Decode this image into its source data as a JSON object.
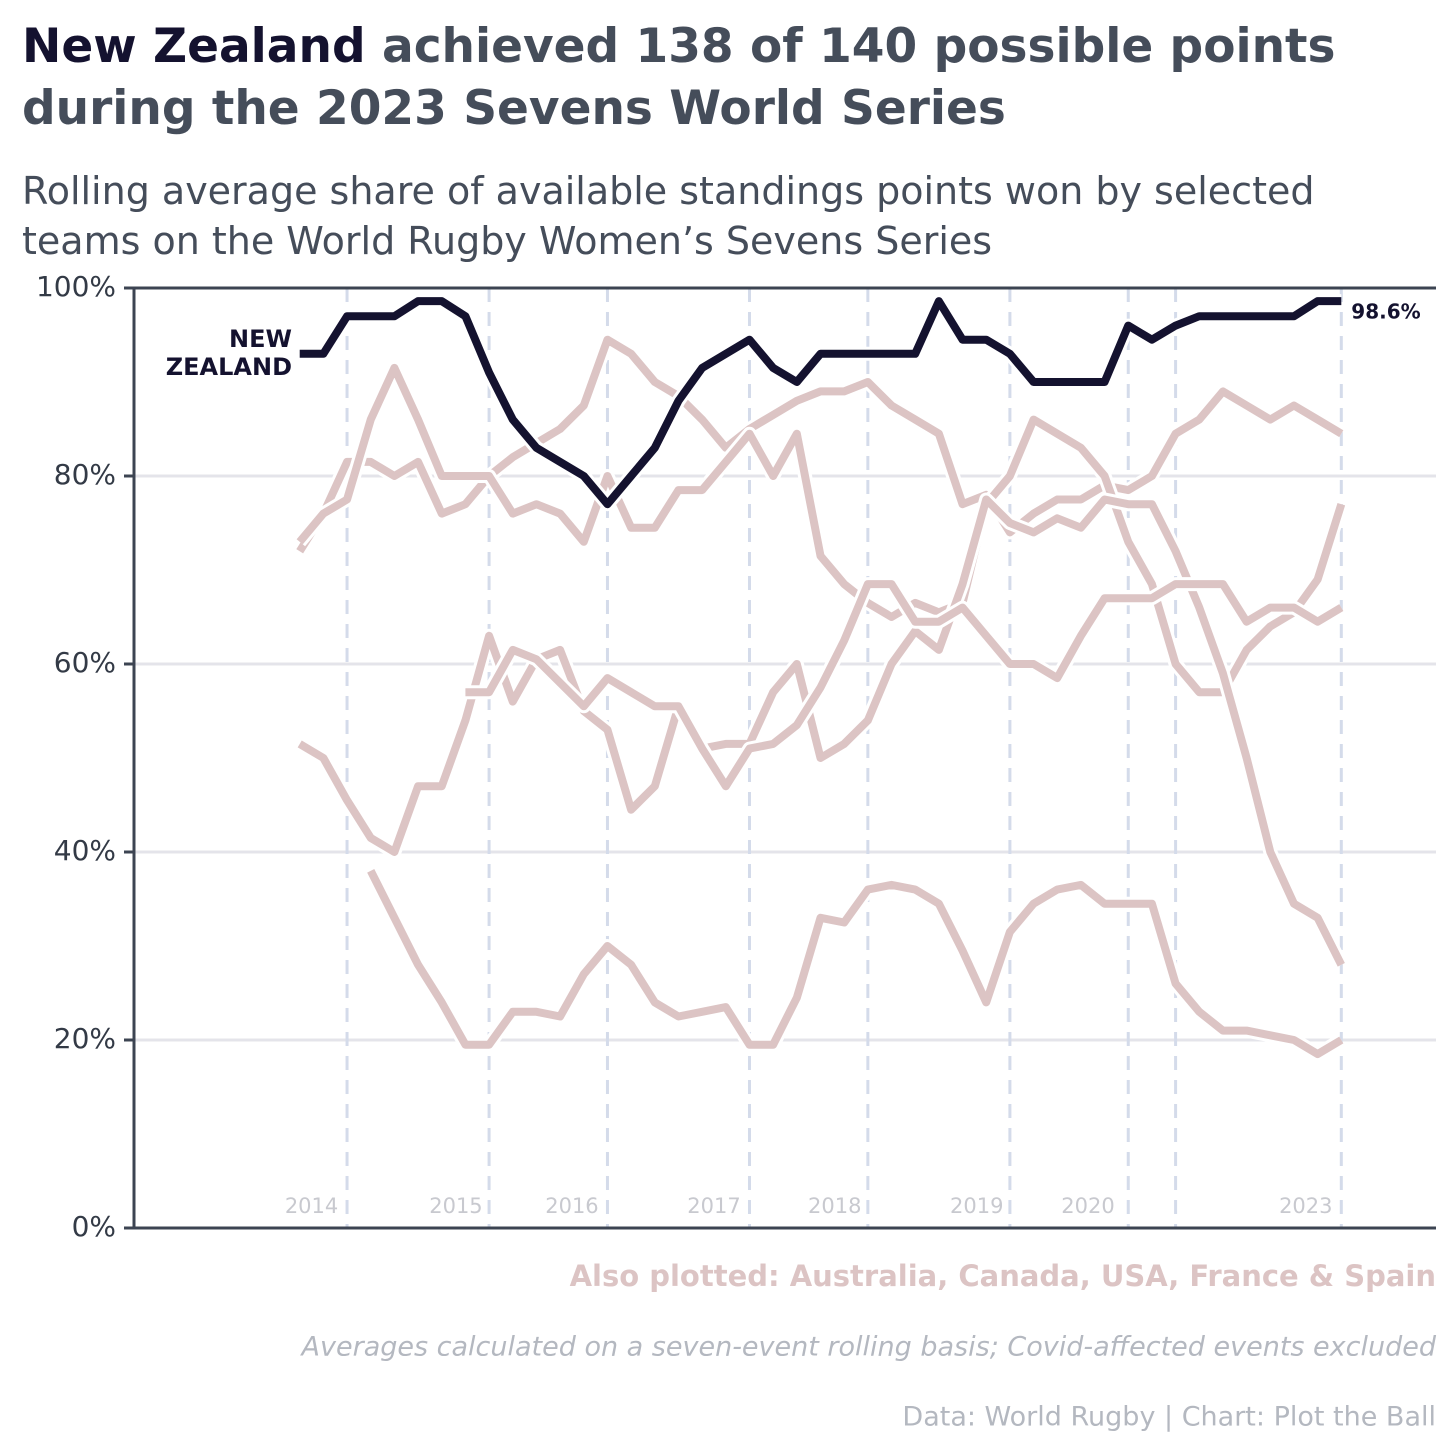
{
  "chart_data": {
    "type": "line",
    "title_highlight": "New Zealand",
    "title": "achieved 138 of 140 possible points during the 2023 Sevens World Series",
    "subtitle": "Rolling average share of available standings points won by selected teams on the World Rugby Women’s Sevens Series",
    "annotation": "Also plotted: Australia, Canada, USA, France & Spain",
    "note": "Averages calculated on a seven-event rolling basis; Covid-affected events excluded",
    "source": "Data: World Rugby | Chart: Plot the Ball",
    "x": [
      0,
      1,
      2,
      3,
      4,
      5,
      6,
      7,
      8,
      9,
      10,
      11,
      12,
      13,
      14,
      15,
      16,
      17,
      18,
      19,
      20,
      21,
      22,
      23,
      24,
      25,
      26,
      27,
      28,
      29,
      30,
      31,
      32,
      33,
      34,
      35,
      36,
      37,
      38,
      39,
      40,
      41,
      42,
      43,
      44
    ],
    "xlim": [
      -7,
      48
    ],
    "xticks": [
      {
        "value": 0.5,
        "label": "2014"
      },
      {
        "value": 6.6,
        "label": "2015"
      },
      {
        "value": 11.5,
        "label": "2016"
      },
      {
        "value": 17.5,
        "label": "2017"
      },
      {
        "value": 22.6,
        "label": "2018"
      },
      {
        "value": 28.6,
        "label": "2019"
      },
      {
        "value": 33.3,
        "label": "2020"
      },
      {
        "value": 42.5,
        "label": "2023"
      }
    ],
    "season_breaks": [
      2,
      8,
      13,
      19,
      24,
      30,
      35,
      37,
      44
    ],
    "ylim": [
      0,
      100
    ],
    "yticks": [
      {
        "value": 0,
        "label": "0%"
      },
      {
        "value": 20,
        "label": "20%"
      },
      {
        "value": 40,
        "label": "40%"
      },
      {
        "value": 60,
        "label": "60%"
      },
      {
        "value": 80,
        "label": "80%"
      },
      {
        "value": 100,
        "label": "100%"
      }
    ],
    "grid": true,
    "series": [
      {
        "color": "#dcc4c4",
        "values": [
          72,
          76,
          81.5,
          81.5,
          80,
          81.5,
          76,
          77,
          80,
          82,
          83.5,
          85,
          87.5,
          94.5,
          93,
          90,
          88.5,
          86,
          83,
          85,
          86.5,
          88,
          89,
          89,
          90,
          87.5,
          86,
          84.5,
          77,
          78,
          74,
          76,
          77.5,
          77.5,
          79,
          78.5,
          80,
          84.5,
          86,
          89,
          87.5,
          86,
          87.5,
          86,
          84.5
        ]
      },
      {
        "color": "#dcc4c4",
        "values": [
          73,
          76,
          77.5,
          86,
          91.5,
          86,
          80,
          80,
          80,
          76,
          77,
          76,
          73,
          80,
          74.5,
          74.5,
          78.5,
          78.5,
          81.5,
          84.5,
          80,
          84.5,
          71.5,
          68.5,
          66.5,
          65,
          66.5,
          65.5,
          66.5,
          77,
          80,
          86,
          84.5,
          83,
          80,
          73,
          68.5,
          60,
          57,
          57,
          61.5,
          64,
          65.5,
          69,
          77
        ]
      },
      {
        "color": "#dcc4c4",
        "values": [
          51.5,
          50,
          45.5,
          41.5,
          40,
          47,
          47,
          54,
          63,
          56,
          60.5,
          61.5,
          55,
          53,
          44.5,
          47,
          55.5,
          51,
          51.5,
          51.5,
          57,
          60,
          50,
          51.5,
          54,
          60,
          63.5,
          61.5,
          68.5,
          77.5,
          75,
          74,
          75.5,
          74.5,
          77.5,
          77,
          77,
          72,
          66,
          59,
          50,
          40,
          34.5,
          33,
          28
        ]
      },
      {
        "color": "#dcc4c4",
        "values": [
          null,
          null,
          null,
          null,
          null,
          null,
          null,
          57,
          57,
          61.5,
          60.5,
          58,
          55.5,
          58.5,
          57,
          55.5,
          55.5,
          51,
          47,
          51,
          51.5,
          53.5,
          57.5,
          62.5,
          68.5,
          68.5,
          64.5,
          64.5,
          66,
          63,
          60,
          60,
          58.5,
          63,
          67,
          67,
          67,
          68.5,
          68.5,
          68.5,
          64.5,
          66,
          66,
          64.5,
          66
        ]
      },
      {
        "color": "#dcc4c4",
        "values": [
          null,
          null,
          null,
          38,
          33,
          28,
          24,
          19.5,
          19.5,
          23,
          23,
          22.5,
          27,
          30,
          28,
          24,
          22.5,
          23,
          23.5,
          19.5,
          19.5,
          24.5,
          33,
          32.5,
          36,
          36.5,
          36,
          34.5,
          29.5,
          24,
          31.5,
          34.5,
          36,
          36.5,
          34.5,
          34.5,
          34.5,
          26,
          23,
          21,
          21,
          20.5,
          20,
          18.5,
          20
        ]
      },
      {
        "name": "NEW ZEALAND",
        "color": "#14122f",
        "values": [
          93,
          93,
          97,
          97,
          97,
          98.6,
          98.6,
          97,
          91,
          86,
          83,
          81.5,
          80,
          77,
          80,
          83,
          88,
          91.5,
          93,
          94.5,
          91.5,
          90,
          93,
          93,
          93,
          93,
          93,
          98.6,
          94.5,
          94.5,
          93,
          90,
          90,
          90,
          90,
          96,
          94.5,
          96,
          97,
          97,
          97,
          97,
          97,
          98.6,
          98.6
        ],
        "value_labels": [
          null,
          null,
          null,
          null,
          null,
          null,
          null,
          null,
          null,
          null,
          null,
          null,
          null,
          null,
          null,
          null,
          null,
          null,
          null,
          null,
          null,
          null,
          null,
          null,
          null,
          null,
          null,
          null,
          null,
          null,
          null,
          null,
          null,
          null,
          null,
          null,
          null,
          null,
          null,
          null,
          null,
          null,
          null,
          null,
          "98.6%"
        ]
      }
    ]
  }
}
